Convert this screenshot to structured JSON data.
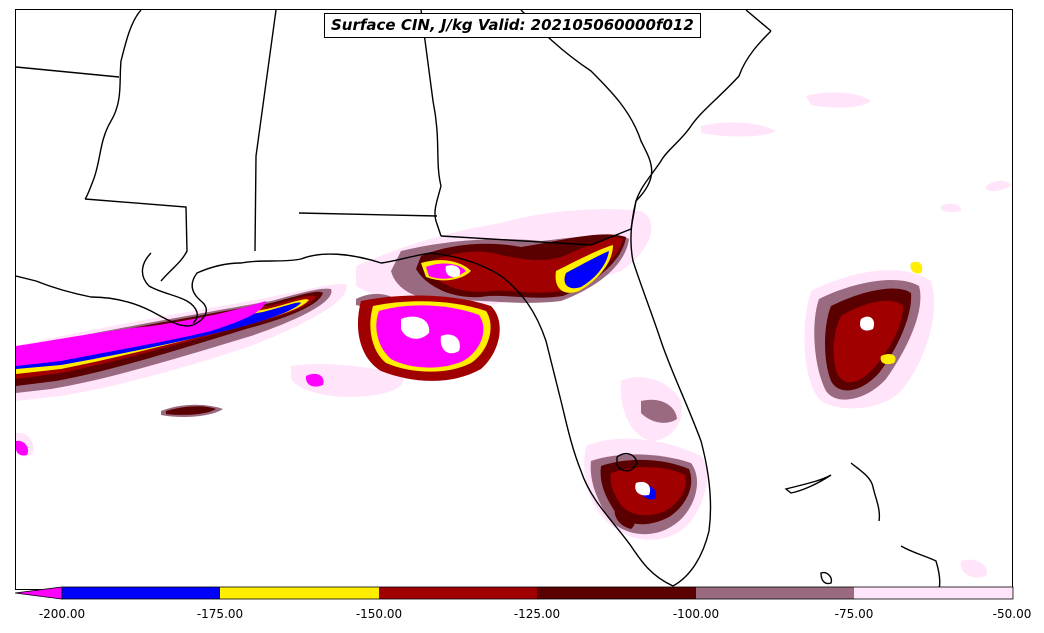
{
  "title": "Surface CIN, J/kg Valid: 202105060000f012",
  "colorbar": {
    "ticks": [
      "-200.00",
      "-175.00",
      "-150.00",
      "-125.00",
      "-100.00",
      "-75.00",
      "-50.00"
    ],
    "colors": [
      "#ff00ff",
      "#0000ff",
      "#ffee00",
      "#a00000",
      "#5a0000",
      "#9a6a80",
      "#ffe4fa"
    ],
    "extend": "min"
  },
  "palette": {
    "magenta": "#ff00ff",
    "blue": "#0000ff",
    "yellow": "#ffee00",
    "red": "#a00000",
    "dark_red": "#5a0000",
    "mauve": "#9a6a80",
    "light_pink": "#ffe4fa",
    "boundary": "#000000"
  }
}
